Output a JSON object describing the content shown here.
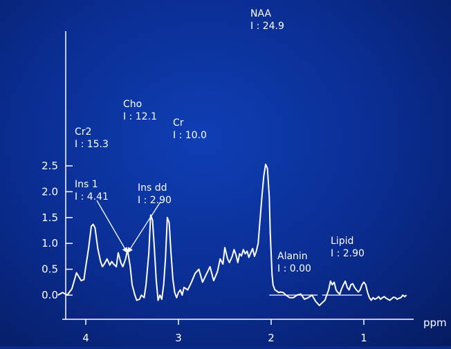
{
  "chart_data": {
    "type": "line",
    "title": "",
    "xlabel": "ppm",
    "ylabel": "",
    "xlim": [
      4.3,
      0.5
    ],
    "ylim": [
      -0.25,
      2.65
    ],
    "x_reversed": true,
    "x_ticks": [
      4,
      3,
      2,
      1
    ],
    "x_tick_labels": [
      "4",
      "3",
      "2",
      "1"
    ],
    "y_ticks": [
      0.0,
      0.5,
      1.0,
      1.5,
      2.0,
      2.5
    ],
    "y_tick_labels": [
      "0.0",
      "0.5",
      "1.0",
      "1.5",
      "2.0",
      "2.5"
    ],
    "line_color": "#ffffff",
    "background_color": "#0b2e92",
    "series": [
      {
        "x": [
          4.3,
          4.25,
          4.2,
          4.15,
          4.1,
          4.05,
          4.02,
          4.0,
          3.97,
          3.94,
          3.92,
          3.9,
          3.87,
          3.84,
          3.82,
          3.8,
          3.77,
          3.74,
          3.72,
          3.7,
          3.67,
          3.65,
          3.62,
          3.6,
          3.57,
          3.55,
          3.52,
          3.5,
          3.47,
          3.45,
          3.42,
          3.4,
          3.37,
          3.35,
          3.32,
          3.3,
          3.28,
          3.26,
          3.24,
          3.22,
          3.2,
          3.18,
          3.16,
          3.14,
          3.12,
          3.1,
          3.08,
          3.06,
          3.04,
          3.02,
          3.0,
          2.98,
          2.96,
          2.94,
          2.9,
          2.86,
          2.82,
          2.78,
          2.74,
          2.7,
          2.66,
          2.62,
          2.58,
          2.55,
          2.52,
          2.5,
          2.47,
          2.45,
          2.42,
          2.4,
          2.38,
          2.36,
          2.34,
          2.32,
          2.3,
          2.28,
          2.26,
          2.24,
          2.22,
          2.2,
          2.18,
          2.16,
          2.14,
          2.12,
          2.1,
          2.08,
          2.06,
          2.04,
          2.02,
          2.01,
          2.0,
          1.99,
          1.98,
          1.96,
          1.94,
          1.92,
          1.9,
          1.87,
          1.84,
          1.8,
          1.76,
          1.72,
          1.68,
          1.64,
          1.6,
          1.56,
          1.52,
          1.48,
          1.45,
          1.42,
          1.4,
          1.38,
          1.36,
          1.34,
          1.32,
          1.3,
          1.28,
          1.26,
          1.24,
          1.22,
          1.2,
          1.18,
          1.16,
          1.14,
          1.12,
          1.1,
          1.08,
          1.06,
          1.04,
          1.02,
          1.0,
          0.98,
          0.96,
          0.94,
          0.92,
          0.9,
          0.88,
          0.86,
          0.84,
          0.82,
          0.8,
          0.78,
          0.76,
          0.74,
          0.72,
          0.7,
          0.68,
          0.66,
          0.64,
          0.62,
          0.6,
          0.58,
          0.56,
          0.54
        ],
        "y": [
          0.0,
          0.05,
          0.0,
          0.12,
          0.43,
          0.28,
          0.3,
          0.55,
          0.9,
          1.33,
          1.37,
          1.3,
          0.9,
          0.65,
          0.55,
          0.6,
          0.7,
          0.58,
          0.65,
          0.6,
          0.55,
          0.82,
          0.62,
          0.55,
          0.7,
          0.88,
          0.55,
          0.2,
          0.0,
          -0.1,
          -0.08,
          0.0,
          -0.05,
          0.2,
          0.8,
          1.55,
          1.45,
          0.9,
          0.3,
          -0.1,
          0.0,
          -0.08,
          0.2,
          0.7,
          1.5,
          1.4,
          0.8,
          0.3,
          0.05,
          -0.05,
          0.05,
          0.1,
          0.0,
          0.15,
          0.1,
          0.25,
          0.42,
          0.5,
          0.25,
          0.4,
          0.55,
          0.28,
          0.45,
          0.7,
          0.6,
          0.92,
          0.7,
          0.63,
          0.75,
          0.88,
          0.78,
          0.63,
          0.8,
          0.76,
          0.88,
          0.8,
          0.85,
          0.73,
          0.82,
          0.9,
          0.75,
          0.85,
          1.0,
          1.45,
          1.9,
          2.3,
          2.53,
          2.45,
          1.9,
          1.2,
          0.8,
          0.4,
          0.2,
          0.1,
          0.08,
          0.05,
          0.06,
          0.05,
          0.0,
          -0.05,
          -0.05,
          0.0,
          0.02,
          -0.08,
          -0.05,
          0.0,
          -0.12,
          -0.2,
          -0.15,
          -0.1,
          0.0,
          0.1,
          0.27,
          0.2,
          0.25,
          0.1,
          0.05,
          0.02,
          0.12,
          0.2,
          0.27,
          0.15,
          0.1,
          0.2,
          0.22,
          0.15,
          0.1,
          0.06,
          0.1,
          0.2,
          0.25,
          0.2,
          0.05,
          -0.05,
          -0.1,
          -0.05,
          -0.08,
          -0.06,
          -0.03,
          -0.08,
          -0.05,
          -0.03,
          -0.06,
          -0.08,
          -0.1,
          -0.07,
          -0.04,
          -0.05,
          -0.08,
          -0.06,
          -0.05,
          0.0,
          -0.03,
          0.0
        ]
      }
    ],
    "annotations": [
      {
        "name": "Cr2",
        "label": "Cr2",
        "value_text": "I : 15.3",
        "x": 3.92,
        "y": 1.37
      },
      {
        "name": "Cho",
        "label": "Cho",
        "value_text": "I : 12.1",
        "x": 3.3,
        "y": 1.55
      },
      {
        "name": "Cr",
        "label": "Cr",
        "value_text": "I : 10.0",
        "x": 3.12,
        "y": 1.5
      },
      {
        "name": "NAA",
        "label": "NAA",
        "value_text": "I : 24.9",
        "x": 2.06,
        "y": 2.53
      },
      {
        "name": "Ins1",
        "label": "Ins 1",
        "value_text": "I : 4.41",
        "x": 3.55,
        "y": 0.88
      },
      {
        "name": "Insdd",
        "label": "Ins dd",
        "value_text": "I : 2.90",
        "x": 3.55,
        "y": 0.88
      },
      {
        "name": "Alanin",
        "label": "Alanin",
        "value_text": "I : 0.00",
        "x": 1.85,
        "y": 0.0
      },
      {
        "name": "Lipid",
        "label": "Lipid",
        "value_text": "I : 2.90",
        "x": 1.3,
        "y": 0.27
      }
    ],
    "grid": false,
    "legend": "none"
  }
}
